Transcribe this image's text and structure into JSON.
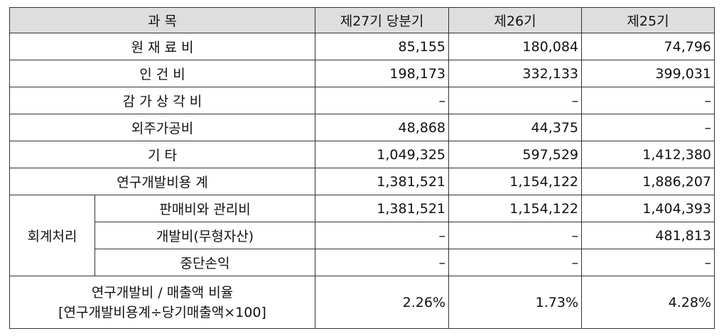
{
  "header": {
    "subject": "과 목",
    "col1": "제27기 당분기",
    "col2": "제26기",
    "col3": "제25기"
  },
  "rows": [
    {
      "label": "원 재 료 비",
      "v1": "85,155",
      "v2": "180,084",
      "v3": "74,796"
    },
    {
      "label": "인 건 비",
      "v1": "198,173",
      "v2": "332,133",
      "v3": "399,031"
    },
    {
      "label": "감 가 상 각 비",
      "v1": "–",
      "v2": "–",
      "v3": "–"
    },
    {
      "label": "외주가공비",
      "v1": "48,868",
      "v2": "44,375",
      "v3": "–"
    },
    {
      "label": "기 타",
      "v1": "1,049,325",
      "v2": "597,529",
      "v3": "1,412,380"
    },
    {
      "label": "연구개발비용 계",
      "v1": "1,381,521",
      "v2": "1,154,122",
      "v3": "1,886,207"
    }
  ],
  "accounting": {
    "group_label": "회계처리",
    "rows": [
      {
        "label": "판매비와 관리비",
        "v1": "1,381,521",
        "v2": "1,154,122",
        "v3": "1,404,393"
      },
      {
        "label": "개발비(무형자산)",
        "v1": "–",
        "v2": "–",
        "v3": "481,813"
      },
      {
        "label": "중단손익",
        "v1": "–",
        "v2": "–",
        "v3": "–"
      }
    ]
  },
  "ratio": {
    "label_line1": "연구개발비 / 매출액 비율",
    "label_line2": "[연구개발비용계÷당기매출액×100]",
    "v1": "2.26%",
    "v2": "1.73%",
    "v3": "4.28%"
  }
}
